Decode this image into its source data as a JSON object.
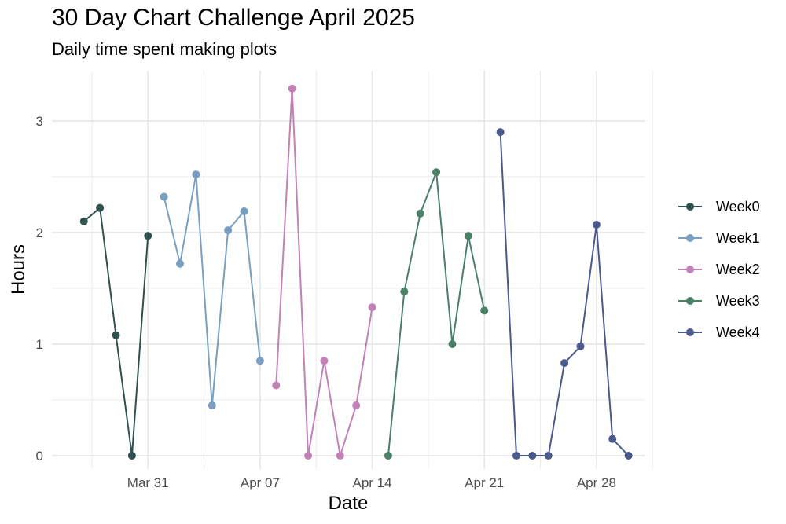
{
  "chart_data": {
    "type": "line",
    "title": "30 Day Chart Challenge April 2025",
    "subtitle": "Daily time spent making plots",
    "xlabel": "Date",
    "ylabel": "Hours",
    "x_ticks": [
      "Mar 31",
      "Apr 07",
      "Apr 14",
      "Apr 21",
      "Apr 28"
    ],
    "y_ticks": [
      "0",
      "1",
      "2",
      "3"
    ],
    "x_range": [
      "2025-03-25",
      "2025-05-01"
    ],
    "ylim": [
      -0.12,
      3.45
    ],
    "grid": true,
    "legend_position": "right",
    "series": [
      {
        "name": "Week0",
        "color": "#2f5250",
        "x": [
          "2025-03-27",
          "2025-03-28",
          "2025-03-29",
          "2025-03-30",
          "2025-03-31"
        ],
        "y": [
          2.1,
          2.22,
          1.08,
          0.0,
          1.97
        ]
      },
      {
        "name": "Week1",
        "color": "#7b9fc0",
        "x": [
          "2025-04-01",
          "2025-04-02",
          "2025-04-03",
          "2025-04-04",
          "2025-04-05",
          "2025-04-06",
          "2025-04-07"
        ],
        "y": [
          2.32,
          1.72,
          2.52,
          0.45,
          2.02,
          2.19,
          0.85
        ]
      },
      {
        "name": "Week2",
        "color": "#c281b7",
        "x": [
          "2025-04-08",
          "2025-04-09",
          "2025-04-10",
          "2025-04-11",
          "2025-04-12",
          "2025-04-13",
          "2025-04-14"
        ],
        "y": [
          0.63,
          3.29,
          0.0,
          0.85,
          0.0,
          0.45,
          1.33
        ]
      },
      {
        "name": "Week3",
        "color": "#4a7f68",
        "x": [
          "2025-04-15",
          "2025-04-16",
          "2025-04-17",
          "2025-04-18",
          "2025-04-19",
          "2025-04-20",
          "2025-04-21"
        ],
        "y": [
          0.0,
          1.47,
          2.17,
          2.54,
          1.0,
          1.97,
          1.3
        ]
      },
      {
        "name": "Week4",
        "color": "#4a5a8c",
        "x": [
          "2025-04-22",
          "2025-04-23",
          "2025-04-24",
          "2025-04-25",
          "2025-04-26",
          "2025-04-27",
          "2025-04-28",
          "2025-04-29",
          "2025-04-30"
        ],
        "y": [
          2.9,
          0.0,
          0.0,
          0.0,
          0.83,
          0.98,
          2.07,
          0.15,
          0.0
        ]
      }
    ]
  }
}
